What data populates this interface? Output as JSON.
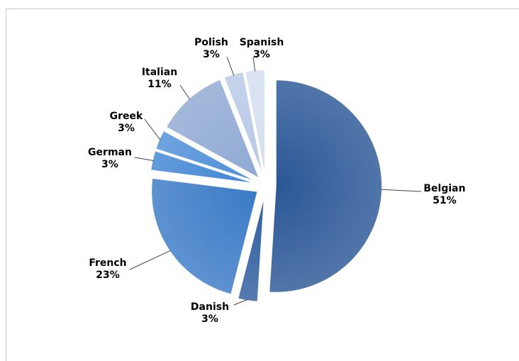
{
  "chart_data": {
    "type": "pie",
    "exploded": true,
    "categories": [
      "Belgian",
      "Danish",
      "French",
      "German",
      "Greek",
      "Italian",
      "Polish",
      "Spanish"
    ],
    "values": [
      51,
      3,
      23,
      3,
      3,
      11,
      3,
      3
    ],
    "value_labels": [
      "51%",
      "3%",
      "23%",
      "3%",
      "3%",
      "11%",
      "3%",
      "3%"
    ],
    "colors": [
      "#2b5796",
      "#2f5e9e",
      "#3a7ac6",
      "#3f86d3",
      "#4d8fd8",
      "#8fa9d3",
      "#b8c9e6",
      "#d3def0"
    ],
    "start_angle_deg": 0,
    "direction": "clockwise",
    "legend": "none"
  }
}
